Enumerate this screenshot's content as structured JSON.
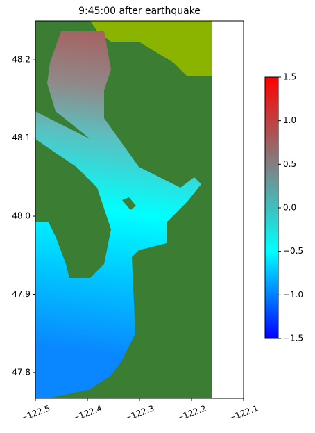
{
  "chart_data": {
    "type": "map",
    "title": "9:45:00 after earthquake",
    "xlim": [
      -122.5,
      -122.1
    ],
    "xticks": [
      {
        "value": -122.5,
        "label": "−122.5"
      },
      {
        "value": -122.4,
        "label": "−122.4"
      },
      {
        "value": -122.3,
        "label": "−122.3"
      },
      {
        "value": -122.2,
        "label": "−122.2"
      },
      {
        "value": -122.1,
        "label": "−122.1"
      }
    ],
    "ylim": [
      47.767,
      48.25
    ],
    "yticks": [
      {
        "value": 47.8,
        "label": "47.8"
      },
      {
        "value": 47.9,
        "label": "47.9"
      },
      {
        "value": 48.0,
        "label": "48.0"
      },
      {
        "value": 48.1,
        "label": "48.1"
      },
      {
        "value": 48.2,
        "label": "48.2"
      }
    ],
    "colorbar": {
      "lim": [
        -1.5,
        1.5
      ],
      "ticks": [
        {
          "value": -1.5,
          "label": "−1.5"
        },
        {
          "value": -1.0,
          "label": "−1.0"
        },
        {
          "value": -0.5,
          "label": "−0.5"
        },
        {
          "value": 0.0,
          "label": "0.0"
        },
        {
          "value": 0.5,
          "label": "0.5"
        },
        {
          "value": 1.0,
          "label": "1.0"
        },
        {
          "value": 1.5,
          "label": "1.5"
        }
      ],
      "colors": [
        "#0000ff",
        "#00ffff",
        "#808080",
        "#ff0000"
      ]
    }
  }
}
